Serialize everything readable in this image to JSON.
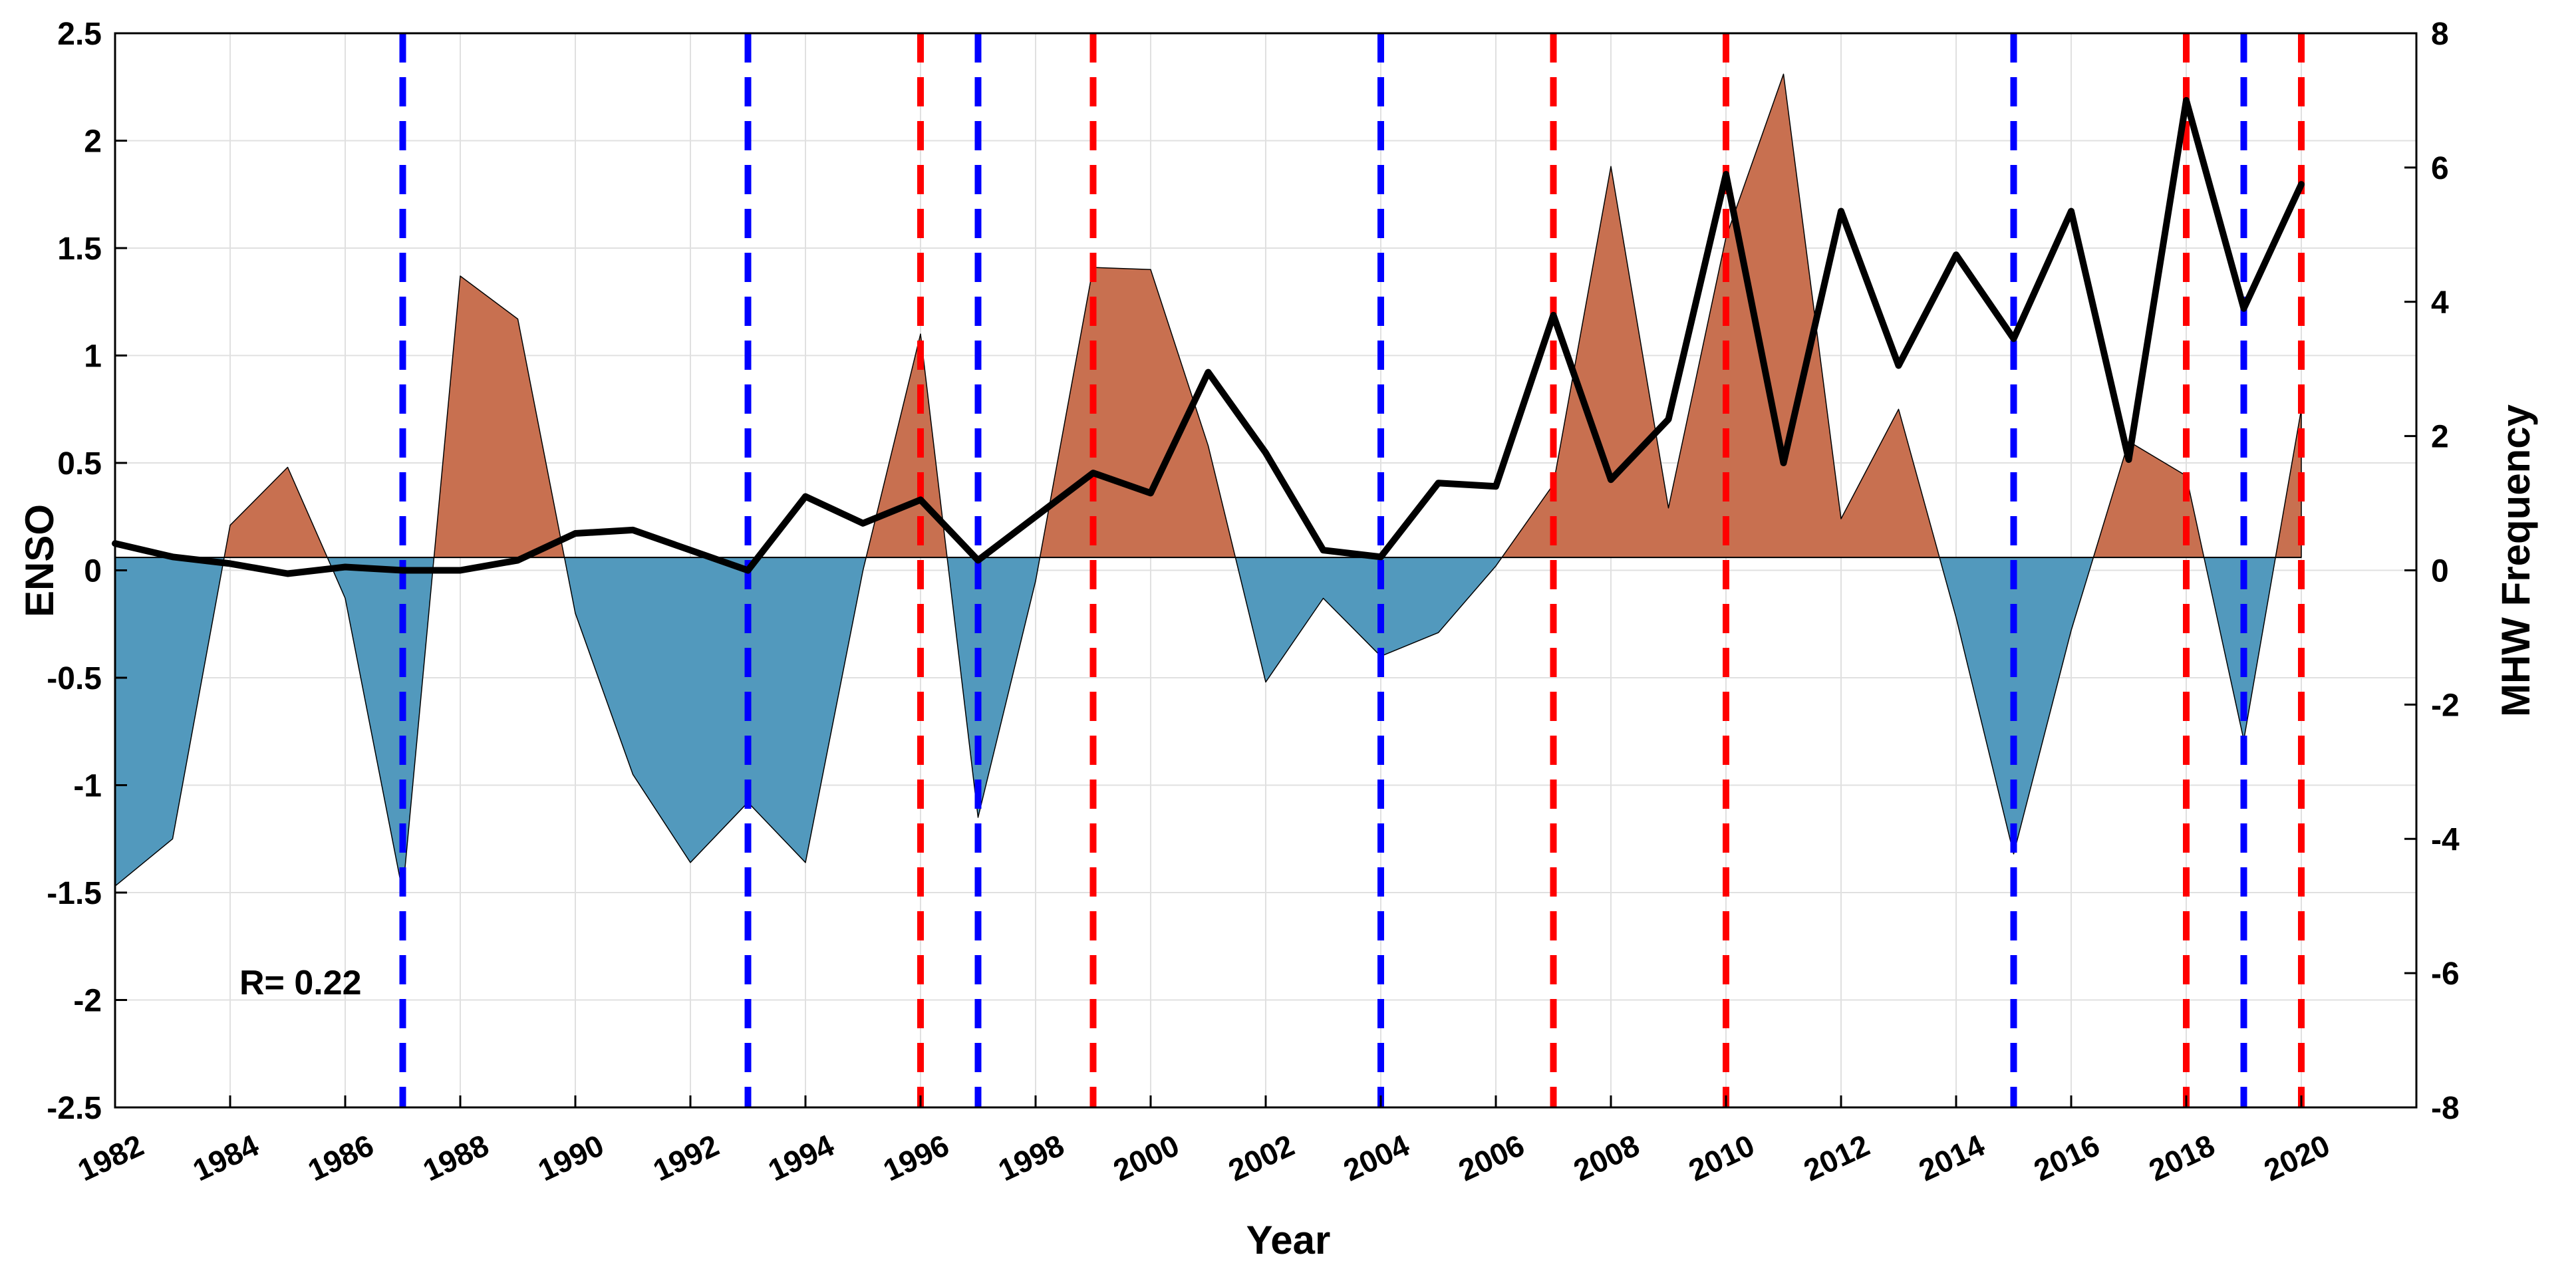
{
  "chart_data": {
    "type": "area+line",
    "xlabel": "Year",
    "ylabel_left": "ENSO",
    "ylabel_right": "MHW Frequency",
    "annotation": "R= 0.22",
    "xlim": [
      1982,
      2022
    ],
    "ylim_left": [
      -2.5,
      2.5
    ],
    "ylim_right": [
      -8,
      8
    ],
    "enso_baseline": 0.06,
    "grid": true,
    "x_ticks": [
      1982,
      1984,
      1986,
      1988,
      1990,
      1992,
      1994,
      1996,
      1998,
      2000,
      2002,
      2004,
      2006,
      2008,
      2010,
      2012,
      2014,
      2016,
      2018,
      2020
    ],
    "x_tick_labels": [
      "1982",
      "1984",
      "1986",
      "1988",
      "1990",
      "1992",
      "1994",
      "1996",
      "1998",
      "2000",
      "2002",
      "2004",
      "2006",
      "2008",
      "2010",
      "2012",
      "2014",
      "2016",
      "2018",
      "2020"
    ],
    "y_left_ticks": [
      -2.5,
      -2,
      -1.5,
      -1,
      -0.5,
      0,
      0.5,
      1,
      1.5,
      2,
      2.5
    ],
    "y_left_tick_labels": [
      "-2.5",
      "-2",
      "-1.5",
      "-1",
      "-0.5",
      "0",
      "0.5",
      "1",
      "1.5",
      "2",
      "2.5"
    ],
    "y_right_ticks": [
      -8,
      -6,
      -4,
      -2,
      0,
      2,
      4,
      6,
      8
    ],
    "y_right_tick_labels": [
      "-8",
      "-6",
      "-4",
      "-2",
      "0",
      "2",
      "4",
      "6",
      "8"
    ],
    "enso": {
      "name": "ENSO index",
      "years": [
        1982,
        1983,
        1984,
        1985,
        1986,
        1987,
        1988,
        1989,
        1990,
        1991,
        1992,
        1993,
        1994,
        1995,
        1996,
        1997,
        1998,
        1999,
        2000,
        2001,
        2002,
        2003,
        2004,
        2005,
        2006,
        2007,
        2008,
        2009,
        2010,
        2011,
        2012,
        2013,
        2014,
        2015,
        2016,
        2017,
        2018,
        2019,
        2020
      ],
      "values": [
        -1.47,
        -1.25,
        0.21,
        0.48,
        -0.13,
        -1.5,
        1.37,
        1.17,
        -0.2,
        -0.95,
        -1.36,
        -1.08,
        -1.36,
        0.0,
        1.1,
        -1.15,
        -0.05,
        1.41,
        1.4,
        0.58,
        -0.52,
        -0.13,
        -0.4,
        -0.29,
        0.02,
        0.4,
        1.88,
        0.29,
        1.55,
        2.31,
        0.24,
        0.75,
        -0.22,
        -1.32,
        -0.28,
        0.6,
        0.44,
        -0.79,
        0.75
      ],
      "positive_color": "#c87050",
      "negative_color": "#5299bd"
    },
    "mhw_frequency": {
      "name": "MHW Frequency",
      "color": "#000000",
      "years": [
        1982,
        1983,
        1984,
        1985,
        1986,
        1987,
        1988,
        1989,
        1990,
        1991,
        1992,
        1993,
        1994,
        1995,
        1996,
        1997,
        1998,
        1999,
        2000,
        2001,
        2002,
        2003,
        2004,
        2005,
        2006,
        2007,
        2008,
        2009,
        2010,
        2011,
        2012,
        2013,
        2014,
        2015,
        2016,
        2017,
        2018,
        2019,
        2020
      ],
      "values": [
        0.4,
        0.2,
        0.1,
        -0.05,
        0.05,
        0.0,
        0.0,
        0.15,
        0.55,
        0.6,
        0.3,
        0.0,
        1.1,
        0.7,
        1.05,
        0.15,
        0.8,
        1.45,
        1.15,
        2.95,
        1.75,
        0.3,
        0.2,
        1.3,
        1.25,
        3.8,
        1.35,
        2.25,
        5.9,
        1.6,
        5.35,
        3.05,
        4.7,
        3.45,
        5.35,
        1.65,
        7.0,
        3.9,
        5.75
      ]
    },
    "vertical_markers": [
      {
        "year": 1987,
        "color": "#0000ff",
        "category": "blue"
      },
      {
        "year": 1993,
        "color": "#0000ff",
        "category": "blue"
      },
      {
        "year": 1996,
        "color": "#ff0000",
        "category": "red"
      },
      {
        "year": 1997,
        "color": "#0000ff",
        "category": "blue"
      },
      {
        "year": 1999,
        "color": "#ff0000",
        "category": "red"
      },
      {
        "year": 2004,
        "color": "#0000ff",
        "category": "blue"
      },
      {
        "year": 2007,
        "color": "#ff0000",
        "category": "red"
      },
      {
        "year": 2010,
        "color": "#ff0000",
        "category": "red"
      },
      {
        "year": 2015,
        "color": "#0000ff",
        "category": "blue"
      },
      {
        "year": 2018,
        "color": "#ff0000",
        "category": "red"
      },
      {
        "year": 2019,
        "color": "#0000ff",
        "category": "blue"
      },
      {
        "year": 2020,
        "color": "#ff0000",
        "category": "red"
      }
    ]
  }
}
